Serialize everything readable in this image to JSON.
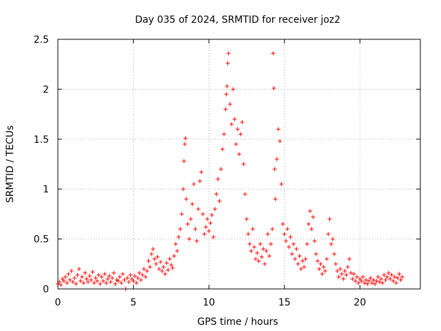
{
  "chart_data": {
    "type": "scatter",
    "title": "Day 035 of 2024, SRMTID for receiver joz2",
    "xlabel": "GPS time / hours",
    "ylabel": "SRMTID / TECUs",
    "xlim": [
      0,
      24
    ],
    "ylim": [
      0,
      2.5
    ],
    "xticks": [
      0,
      5,
      10,
      15,
      20
    ],
    "xtick_labels": [
      "0",
      "5",
      "10",
      "15",
      "20"
    ],
    "yticks": [
      0,
      0.5,
      1,
      1.5,
      2,
      2.5
    ],
    "ytick_labels": [
      "0",
      "0.5",
      "1",
      "1.5",
      "2",
      "2.5"
    ],
    "grid": true,
    "marker": "+",
    "marker_color": "#ff0000",
    "series": [
      {
        "name": "SRMTID",
        "points": [
          [
            0.0,
            0.05
          ],
          [
            0.1,
            0.07
          ],
          [
            0.2,
            0.04
          ],
          [
            0.3,
            0.1
          ],
          [
            0.4,
            0.08
          ],
          [
            0.5,
            0.12
          ],
          [
            0.6,
            0.06
          ],
          [
            0.7,
            0.15
          ],
          [
            0.8,
            0.09
          ],
          [
            0.9,
            0.18
          ],
          [
            1.0,
            0.07
          ],
          [
            1.1,
            0.11
          ],
          [
            1.2,
            0.05
          ],
          [
            1.3,
            0.14
          ],
          [
            1.4,
            0.2
          ],
          [
            1.5,
            0.08
          ],
          [
            1.6,
            0.12
          ],
          [
            1.7,
            0.06
          ],
          [
            1.8,
            0.16
          ],
          [
            1.9,
            0.1
          ],
          [
            2.0,
            0.07
          ],
          [
            2.1,
            0.13
          ],
          [
            2.2,
            0.09
          ],
          [
            2.3,
            0.17
          ],
          [
            2.4,
            0.06
          ],
          [
            2.5,
            0.11
          ],
          [
            2.6,
            0.08
          ],
          [
            2.7,
            0.14
          ],
          [
            2.8,
            0.05
          ],
          [
            2.9,
            0.12
          ],
          [
            3.0,
            0.08
          ],
          [
            3.1,
            0.15
          ],
          [
            3.2,
            0.06
          ],
          [
            3.3,
            0.1
          ],
          [
            3.4,
            0.13
          ],
          [
            3.5,
            0.07
          ],
          [
            3.6,
            0.11
          ],
          [
            3.7,
            0.16
          ],
          [
            3.8,
            0.05
          ],
          [
            3.9,
            0.09
          ],
          [
            4.0,
            0.08
          ],
          [
            4.1,
            0.12
          ],
          [
            4.2,
            0.06
          ],
          [
            4.3,
            0.15
          ],
          [
            4.4,
            0.09
          ],
          [
            4.5,
            0.0
          ],
          [
            4.6,
            0.11
          ],
          [
            4.7,
            0.07
          ],
          [
            4.8,
            0.14
          ],
          [
            4.9,
            0.1
          ],
          [
            5.0,
            0.08
          ],
          [
            5.1,
            0.13
          ],
          [
            5.2,
            0.06
          ],
          [
            5.3,
            0.11
          ],
          [
            5.4,
            0.16
          ],
          [
            5.5,
            0.09
          ],
          [
            5.6,
            0.14
          ],
          [
            5.7,
            0.2
          ],
          [
            5.8,
            0.12
          ],
          [
            5.9,
            0.18
          ],
          [
            6.0,
            0.28
          ],
          [
            6.1,
            0.22
          ],
          [
            6.2,
            0.35
          ],
          [
            6.3,
            0.4
          ],
          [
            6.4,
            0.3
          ],
          [
            6.5,
            0.25
          ],
          [
            6.6,
            0.32
          ],
          [
            6.7,
            0.2
          ],
          [
            6.8,
            0.27
          ],
          [
            6.9,
            0.18
          ],
          [
            7.0,
            0.22
          ],
          [
            7.1,
            0.15
          ],
          [
            7.2,
            0.26
          ],
          [
            7.3,
            0.19
          ],
          [
            7.4,
            0.3
          ],
          [
            7.5,
            0.24
          ],
          [
            7.6,
            0.21
          ],
          [
            7.7,
            0.33
          ],
          [
            7.8,
            0.45
          ],
          [
            7.9,
            0.38
          ],
          [
            8.0,
            0.52
          ],
          [
            8.1,
            0.6
          ],
          [
            8.2,
            0.75
          ],
          [
            8.3,
            1.0
          ],
          [
            8.35,
            1.28
          ],
          [
            8.4,
            1.45
          ],
          [
            8.45,
            1.51
          ],
          [
            8.5,
            0.9
          ],
          [
            8.6,
            0.65
          ],
          [
            8.7,
            0.5
          ],
          [
            8.8,
            0.7
          ],
          [
            8.9,
            0.85
          ],
          [
            9.0,
            1.05
          ],
          [
            9.1,
            0.6
          ],
          [
            9.2,
            0.48
          ],
          [
            9.3,
            0.8
          ],
          [
            9.4,
            1.08
          ],
          [
            9.5,
            1.17
          ],
          [
            9.6,
            0.75
          ],
          [
            9.7,
            0.55
          ],
          [
            9.8,
            0.62
          ],
          [
            9.9,
            0.7
          ],
          [
            10.0,
            0.58
          ],
          [
            10.1,
            0.66
          ],
          [
            10.2,
            0.74
          ],
          [
            10.3,
            0.52
          ],
          [
            10.4,
            0.8
          ],
          [
            10.5,
            0.95
          ],
          [
            10.6,
            1.1
          ],
          [
            10.7,
            0.88
          ],
          [
            10.8,
            1.2
          ],
          [
            10.9,
            1.4
          ],
          [
            11.0,
            1.55
          ],
          [
            11.1,
            1.8
          ],
          [
            11.15,
            1.95
          ],
          [
            11.2,
            2.03
          ],
          [
            11.25,
            2.26
          ],
          [
            11.3,
            2.36
          ],
          [
            11.4,
            1.85
          ],
          [
            11.5,
            1.65
          ],
          [
            11.6,
            2.0
          ],
          [
            11.7,
            1.7
          ],
          [
            11.8,
            1.45
          ],
          [
            11.9,
            1.6
          ],
          [
            12.0,
            1.35
          ],
          [
            12.1,
            1.55
          ],
          [
            12.2,
            1.67
          ],
          [
            12.3,
            1.25
          ],
          [
            12.4,
            0.95
          ],
          [
            12.5,
            0.7
          ],
          [
            12.6,
            0.55
          ],
          [
            12.7,
            0.45
          ],
          [
            12.8,
            0.38
          ],
          [
            12.9,
            0.6
          ],
          [
            13.0,
            0.42
          ],
          [
            13.1,
            0.3
          ],
          [
            13.2,
            0.36
          ],
          [
            13.3,
            0.28
          ],
          [
            13.4,
            0.45
          ],
          [
            13.5,
            0.32
          ],
          [
            13.6,
            0.4
          ],
          [
            13.7,
            0.25
          ],
          [
            13.8,
            0.38
          ],
          [
            13.9,
            0.55
          ],
          [
            14.0,
            0.33
          ],
          [
            14.1,
            0.45
          ],
          [
            14.2,
            0.6
          ],
          [
            14.25,
            2.36
          ],
          [
            14.3,
            2.01
          ],
          [
            14.35,
            1.2
          ],
          [
            14.4,
            0.9
          ],
          [
            14.5,
            1.3
          ],
          [
            14.6,
            1.6
          ],
          [
            14.7,
            1.48
          ],
          [
            14.8,
            1.05
          ],
          [
            14.9,
            0.65
          ],
          [
            15.0,
            0.55
          ],
          [
            15.1,
            0.48
          ],
          [
            15.2,
            0.6
          ],
          [
            15.3,
            0.42
          ],
          [
            15.4,
            0.52
          ],
          [
            15.5,
            0.35
          ],
          [
            15.6,
            0.45
          ],
          [
            15.7,
            0.3
          ],
          [
            15.8,
            0.4
          ],
          [
            15.9,
            0.25
          ],
          [
            16.0,
            0.33
          ],
          [
            16.1,
            0.2
          ],
          [
            16.2,
            0.28
          ],
          [
            16.3,
            0.22
          ],
          [
            16.4,
            0.3
          ],
          [
            16.5,
            0.45
          ],
          [
            16.6,
            0.65
          ],
          [
            16.7,
            0.78
          ],
          [
            16.8,
            0.6
          ],
          [
            16.9,
            0.72
          ],
          [
            17.0,
            0.48
          ],
          [
            17.1,
            0.35
          ],
          [
            17.2,
            0.28
          ],
          [
            17.3,
            0.2
          ],
          [
            17.4,
            0.25
          ],
          [
            17.5,
            0.15
          ],
          [
            17.6,
            0.22
          ],
          [
            17.7,
            0.18
          ],
          [
            17.8,
            0.3
          ],
          [
            17.9,
            0.55
          ],
          [
            18.0,
            0.7
          ],
          [
            18.1,
            0.45
          ],
          [
            18.2,
            0.5
          ],
          [
            18.3,
            0.35
          ],
          [
            18.4,
            0.25
          ],
          [
            18.5,
            0.18
          ],
          [
            18.6,
            0.12
          ],
          [
            18.7,
            0.2
          ],
          [
            18.8,
            0.15
          ],
          [
            18.9,
            0.1
          ],
          [
            19.0,
            0.18
          ],
          [
            19.1,
            0.14
          ],
          [
            19.2,
            0.22
          ],
          [
            19.3,
            0.3
          ],
          [
            19.4,
            0.16
          ],
          [
            19.5,
            0.1
          ],
          [
            19.6,
            0.15
          ],
          [
            19.7,
            0.08
          ],
          [
            19.8,
            0.12
          ],
          [
            19.9,
            0.06
          ],
          [
            20.0,
            0.1
          ],
          [
            20.1,
            0.08
          ],
          [
            20.2,
            0.12
          ],
          [
            20.3,
            0.06
          ],
          [
            20.4,
            0.09
          ],
          [
            20.5,
            0.05
          ],
          [
            20.6,
            0.08
          ],
          [
            20.7,
            0.11
          ],
          [
            20.8,
            0.06
          ],
          [
            20.9,
            0.09
          ],
          [
            21.0,
            0.05
          ],
          [
            21.1,
            0.08
          ],
          [
            21.2,
            0.12
          ],
          [
            21.3,
            0.07
          ],
          [
            21.4,
            0.1
          ],
          [
            21.5,
            0.06
          ],
          [
            21.6,
            0.14
          ],
          [
            21.7,
            0.09
          ],
          [
            21.8,
            0.12
          ],
          [
            21.9,
            0.16
          ],
          [
            22.0,
            0.1
          ],
          [
            22.1,
            0.14
          ],
          [
            22.2,
            0.08
          ],
          [
            22.3,
            0.12
          ],
          [
            22.4,
            0.06
          ],
          [
            22.5,
            0.11
          ],
          [
            22.6,
            0.15
          ],
          [
            22.7,
            0.09
          ],
          [
            22.8,
            0.12
          ]
        ]
      }
    ]
  }
}
